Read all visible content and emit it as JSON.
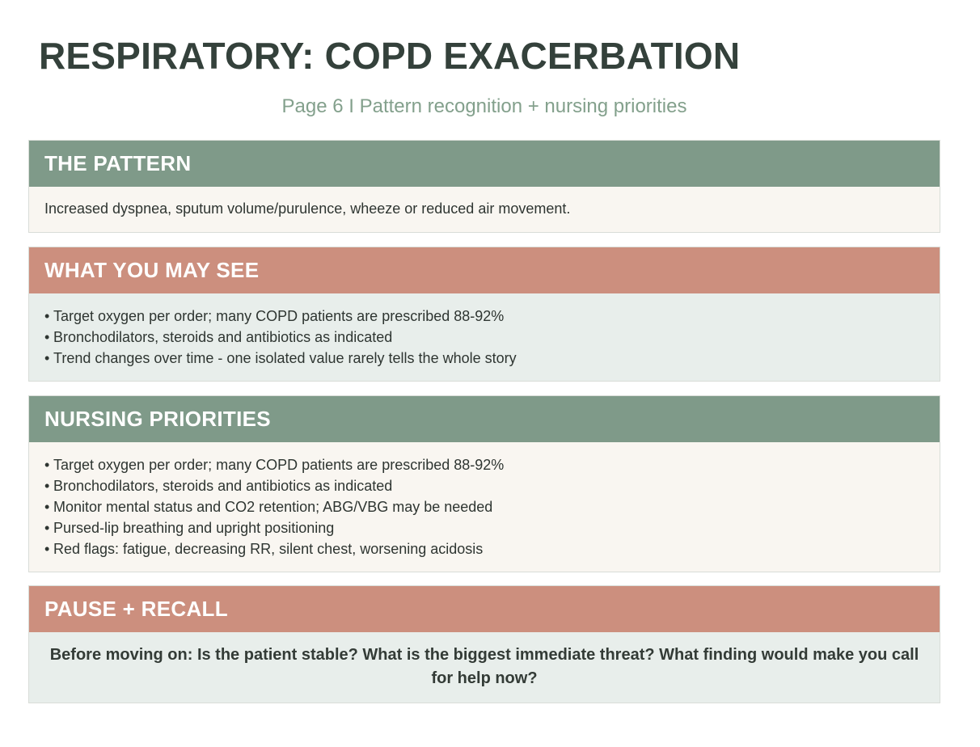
{
  "title": "RESPIRATORY: COPD EXACERBATION",
  "subtitle": "Page 6 I Pattern recognition + nursing priorities",
  "sections": {
    "pattern": {
      "heading": "THE PATTERN",
      "text": "Increased dyspnea, sputum volume/purulence, wheeze or reduced air movement."
    },
    "see": {
      "heading": "WHAT YOU MAY SEE",
      "items": [
        "Target oxygen per order; many COPD patients are prescribed 88-92%",
        "Bronchodilators, steroids and antibiotics as indicated",
        "Trend changes over time - one isolated value rarely tells the whole story"
      ]
    },
    "priorities": {
      "heading": "NURSING PRIORITIES",
      "items": [
        "Target oxygen per order; many COPD patients are prescribed 88-92%",
        "Bronchodilators, steroids and antibiotics as indicated",
        "Monitor mental status and CO2 retention; ABG/VBG may be needed",
        "Pursed-lip breathing and upright positioning",
        "Red flags: fatigue, decreasing RR, silent chest, worsening acidosis"
      ]
    },
    "recall": {
      "heading": "PAUSE + RECALL",
      "text": "Before moving on: Is the patient stable? What is the biggest immediate threat? What finding would make you call for help now?"
    }
  },
  "bullet_char": "•",
  "colors": {
    "green_header": "#7f9a89",
    "rose_header": "#cc8f7e",
    "cream_body": "#f9f6f1",
    "mint_body": "#e8eeeb",
    "title": "#34413b",
    "subtitle": "#83a08c"
  }
}
